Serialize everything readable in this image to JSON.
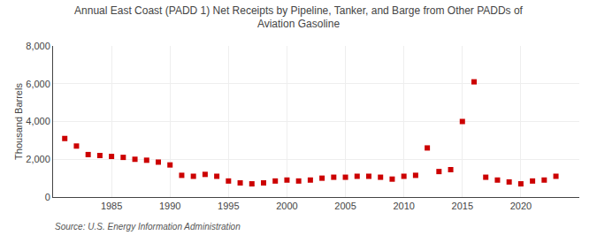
{
  "chart_data": {
    "type": "scatter",
    "title": "Annual East Coast (PADD 1) Net Receipts by Pipeline, Tanker, and Barge from Other PADDs of\nAviation Gasoline",
    "y_label": "Thousand Barrels",
    "annotations": [
      "Source: U.S. Energy Information Administration"
    ],
    "x": [
      1981,
      1982,
      1983,
      1984,
      1985,
      1986,
      1987,
      1988,
      1989,
      1990,
      1991,
      1992,
      1993,
      1994,
      1995,
      1996,
      1997,
      1998,
      1999,
      2000,
      2001,
      2002,
      2003,
      2004,
      2005,
      2006,
      2007,
      2008,
      2009,
      2010,
      2011,
      2012,
      2013,
      2014,
      2015,
      2016,
      2017,
      2018,
      2019,
      2020,
      2021,
      2022,
      2023
    ],
    "values": [
      3100,
      2700,
      2250,
      2200,
      2150,
      2100,
      2000,
      1950,
      1850,
      1700,
      1150,
      1100,
      1200,
      1100,
      850,
      750,
      700,
      750,
      850,
      900,
      850,
      900,
      1000,
      1050,
      1050,
      1100,
      1100,
      1050,
      950,
      1100,
      1150,
      2600,
      1350,
      1450,
      4000,
      6100,
      1050,
      900,
      800,
      700,
      850,
      900,
      1100
    ],
    "color": "#cc0000",
    "marker": "square",
    "xlim": [
      1980,
      2025
    ],
    "xticks": [
      1985,
      1990,
      1995,
      2000,
      2005,
      2010,
      2015,
      2020
    ],
    "ylim": [
      0,
      8000
    ],
    "yticks": [
      0,
      {
        "value": 2000,
        "label": "2,000"
      },
      {
        "value": 4000,
        "label": "4,000"
      },
      {
        "value": 6000,
        "label": "6,000"
      },
      {
        "value": 8000,
        "label": "8,000"
      }
    ],
    "grid": true
  }
}
